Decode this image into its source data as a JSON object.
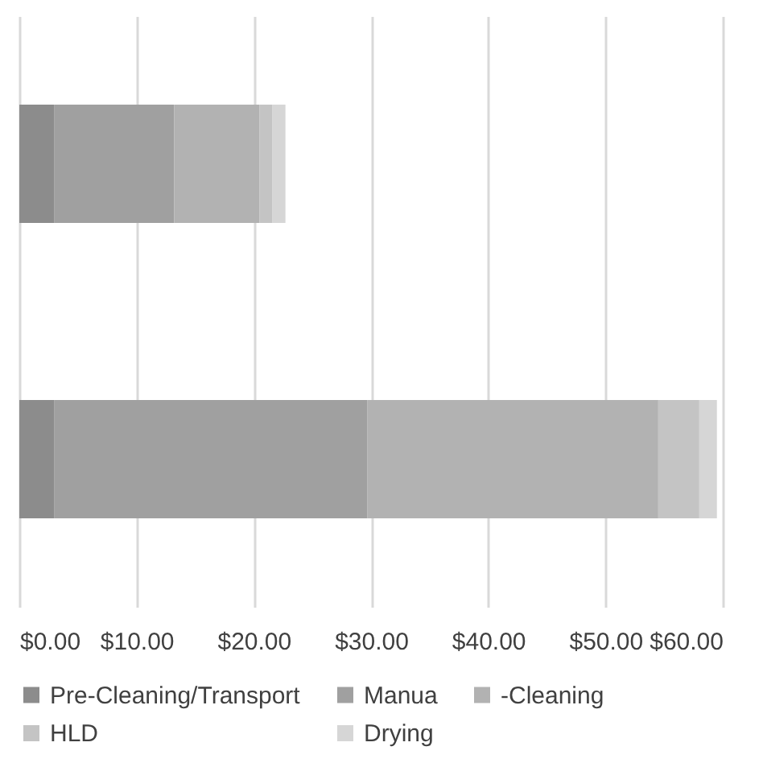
{
  "chart_data": {
    "type": "bar",
    "orientation": "horizontal",
    "stacked": true,
    "categories": [
      null,
      null
    ],
    "series": [
      {
        "name": "Pre-Cleaning/Transport",
        "color": "#8c8c8c",
        "values": [
          3,
          3
        ]
      },
      {
        "name": "Manua",
        "color": "#a0a0a0",
        "values": [
          10.2,
          26.7
        ]
      },
      {
        "name": "-Cleaning",
        "color": "#b2b2b2",
        "values": [
          7.3,
          24.8
        ]
      },
      {
        "name": "HLD",
        "color": "#c4c4c4",
        "values": [
          1.1,
          3.5
        ]
      },
      {
        "name": "Drying",
        "color": "#d6d6d6",
        "values": [
          1.1,
          1.5
        ]
      }
    ],
    "xlim": [
      0,
      60
    ],
    "xticks": [
      {
        "value": 0,
        "label": "$0.00"
      },
      {
        "value": 10,
        "label": "$10.00"
      },
      {
        "value": 20,
        "label": "$20.00"
      },
      {
        "value": 30,
        "label": "$30.00"
      },
      {
        "value": 40,
        "label": "$40.00"
      },
      {
        "value": 50,
        "label": "$50.00"
      },
      {
        "value": 60,
        "label": "$60.00"
      }
    ],
    "grid": "x",
    "legend": "bottom"
  }
}
